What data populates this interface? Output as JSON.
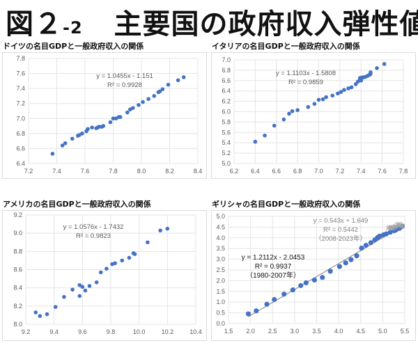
{
  "page": {
    "title_main": "図２",
    "title_sub": "-2",
    "title_rest": "主要国の政府収入弾性値"
  },
  "colors": {
    "marker": "#4472c4",
    "grid": "#e4e4e4",
    "text": "#595959",
    "cross": "#a6a6a6",
    "trend": "#7f7f7f"
  },
  "chart_data": [
    {
      "type": "scatter",
      "title": "ドイツの名目GDPと一般政府収入の関係",
      "xlim": [
        7.2,
        8.4
      ],
      "xticks": [
        "7.2",
        "7.4",
        "7.6",
        "7.8",
        "8.0",
        "8.2",
        "8.4"
      ],
      "ylim": [
        6.4,
        7.8
      ],
      "yticks": [
        "6.4",
        "6.6",
        "6.8",
        "7.0",
        "7.2",
        "7.4",
        "7.6",
        "7.8"
      ],
      "grid": true,
      "annotations": [
        "y = 1.0455x - 1.151",
        "R² = 0.9928"
      ],
      "series": [
        {
          "name": "ドイツ",
          "points": [
            [
              7.37,
              6.53
            ],
            [
              7.44,
              6.64
            ],
            [
              7.46,
              6.67
            ],
            [
              7.51,
              6.73
            ],
            [
              7.55,
              6.77
            ],
            [
              7.56,
              6.78
            ],
            [
              7.58,
              6.8
            ],
            [
              7.61,
              6.83
            ],
            [
              7.62,
              6.86
            ],
            [
              7.65,
              6.88
            ],
            [
              7.68,
              6.87
            ],
            [
              7.69,
              6.88
            ],
            [
              7.7,
              6.89
            ],
            [
              7.72,
              6.89
            ],
            [
              7.73,
              6.9
            ],
            [
              7.78,
              6.95
            ],
            [
              7.8,
              7.0
            ],
            [
              7.82,
              7.0
            ],
            [
              7.84,
              7.02
            ],
            [
              7.85,
              7.02
            ],
            [
              7.9,
              7.08
            ],
            [
              7.92,
              7.12
            ],
            [
              7.94,
              7.14
            ],
            [
              7.98,
              7.18
            ],
            [
              8.01,
              7.22
            ],
            [
              8.05,
              7.26
            ],
            [
              8.09,
              7.3
            ],
            [
              8.12,
              7.35
            ],
            [
              8.13,
              7.36
            ],
            [
              8.15,
              7.39
            ],
            [
              8.19,
              7.45
            ],
            [
              8.26,
              7.51
            ],
            [
              8.3,
              7.55
            ]
          ]
        }
      ]
    },
    {
      "type": "scatter",
      "title": "イタリアの名目GDPと一般政府収入の関係",
      "xlim": [
        6.2,
        7.8
      ],
      "xticks": [
        "6.2",
        "6.4",
        "6.6",
        "6.8",
        "7.0",
        "7.2",
        "7.4",
        "7.6",
        "7.8"
      ],
      "ylim": [
        5.0,
        7.0
      ],
      "yticks": [
        "5.0",
        "5.2",
        "5.4",
        "5.6",
        "5.8",
        "6.0",
        "6.2",
        "6.4",
        "6.6",
        "6.8",
        "7.0"
      ],
      "grid": true,
      "annotations": [
        "y = 1.1103x - 1.5808",
        "R² = 0.9859"
      ],
      "series": [
        {
          "name": "イタリア",
          "points": [
            [
              6.4,
              5.42
            ],
            [
              6.49,
              5.54
            ],
            [
              6.58,
              5.73
            ],
            [
              6.67,
              5.85
            ],
            [
              6.72,
              5.96
            ],
            [
              6.75,
              6.01
            ],
            [
              6.8,
              6.03
            ],
            [
              6.9,
              6.09
            ],
            [
              6.96,
              6.15
            ],
            [
              7.0,
              6.23
            ],
            [
              7.04,
              6.24
            ],
            [
              7.07,
              6.28
            ],
            [
              7.13,
              6.31
            ],
            [
              7.18,
              6.35
            ],
            [
              7.21,
              6.38
            ],
            [
              7.24,
              6.42
            ],
            [
              7.28,
              6.45
            ],
            [
              7.31,
              6.47
            ],
            [
              7.35,
              6.53
            ],
            [
              7.37,
              6.58
            ],
            [
              7.39,
              6.61
            ],
            [
              7.39,
              6.65
            ],
            [
              7.4,
              6.63
            ],
            [
              7.41,
              6.66
            ],
            [
              7.42,
              6.66
            ],
            [
              7.4,
              6.6
            ],
            [
              7.44,
              6.67
            ],
            [
              7.46,
              6.69
            ],
            [
              7.48,
              6.71
            ],
            [
              7.49,
              6.73
            ],
            [
              7.49,
              6.76
            ],
            [
              7.55,
              6.84
            ],
            [
              7.62,
              6.92
            ]
          ]
        }
      ]
    },
    {
      "type": "scatter",
      "title": "アメリカの名目GDPと一般政府収入の関係",
      "xlim": [
        9.2,
        10.4
      ],
      "xticks": [
        "9.2",
        "9.4",
        "9.6",
        "9.8",
        "10.0",
        "10.2",
        "10.4"
      ],
      "ylim": [
        8.0,
        9.2
      ],
      "yticks": [
        "8.0",
        "8.2",
        "8.4",
        "8.6",
        "8.8",
        "9.0",
        "9.2"
      ],
      "grid": true,
      "annotations": [
        "y = 1.0576x - 1.7432",
        "R² = 0.9823"
      ],
      "series": [
        {
          "name": "アメリカ",
          "points": [
            [
              9.27,
              8.13
            ],
            [
              9.3,
              8.09
            ],
            [
              9.35,
              8.11
            ],
            [
              9.41,
              8.19
            ],
            [
              9.47,
              8.3
            ],
            [
              9.53,
              8.38
            ],
            [
              9.58,
              8.43
            ],
            [
              9.58,
              8.31
            ],
            [
              9.6,
              8.41
            ],
            [
              9.62,
              8.37
            ],
            [
              9.65,
              8.42
            ],
            [
              9.7,
              8.46
            ],
            [
              9.73,
              8.57
            ],
            [
              9.77,
              8.61
            ],
            [
              9.81,
              8.66
            ],
            [
              9.83,
              8.67
            ],
            [
              9.88,
              8.7
            ],
            [
              9.93,
              8.73
            ],
            [
              9.96,
              8.78
            ],
            [
              9.97,
              8.77
            ],
            [
              10.06,
              8.9
            ],
            [
              10.15,
              9.03
            ],
            [
              10.2,
              9.05
            ]
          ]
        }
      ]
    },
    {
      "type": "scatter",
      "title": "ギリシャの名目GDPと一般政府収入の関係",
      "xlim": [
        1.5,
        5.5
      ],
      "xticks": [
        "1.5",
        "2.0",
        "2.5",
        "3.0",
        "3.5",
        "4.0",
        "4.5",
        "5.0",
        "5.5"
      ],
      "ylim": [
        0.0,
        5.0
      ],
      "yticks": [
        "0.0",
        "0.5",
        "1.0",
        "1.5",
        "2.0",
        "2.5",
        "3.0",
        "3.5",
        "4.0",
        "4.5",
        "5.0"
      ],
      "grid": true,
      "annotations_a": [
        "y = 1.2112x - 2.0453",
        "R² = 0.9937",
        "（1980-2007年）"
      ],
      "annotations_b": [
        "y = 0.543x + 1.649",
        "R² = 0.5442",
        "（2008-2023年）"
      ],
      "series": [
        {
          "name": "1980-2007年",
          "marker": "circle",
          "trend": {
            "slope": 1.2112,
            "intercept": -2.0453,
            "xrange": [
              1.95,
              5.44
            ]
          },
          "points": [
            [
              1.95,
              0.45
            ],
            [
              2.13,
              0.59
            ],
            [
              2.37,
              0.9
            ],
            [
              2.54,
              1.12
            ],
            [
              2.76,
              1.37
            ],
            [
              2.96,
              1.57
            ],
            [
              3.14,
              1.77
            ],
            [
              3.26,
              1.9
            ],
            [
              3.45,
              2.03
            ],
            [
              3.63,
              2.15
            ],
            [
              3.81,
              2.44
            ],
            [
              4.02,
              2.66
            ],
            [
              4.16,
              2.83
            ],
            [
              4.28,
              2.98
            ],
            [
              4.41,
              3.16
            ],
            [
              4.52,
              3.52
            ],
            [
              4.62,
              3.65
            ],
            [
              4.73,
              3.77
            ],
            [
              4.82,
              3.9
            ],
            [
              4.88,
              4.01
            ],
            [
              4.93,
              4.08
            ],
            [
              5.02,
              4.14
            ],
            [
              5.08,
              4.18
            ],
            [
              5.17,
              4.26
            ],
            [
              5.26,
              4.33
            ],
            [
              5.3,
              4.37
            ],
            [
              5.38,
              4.44
            ],
            [
              5.44,
              4.54
            ]
          ]
        },
        {
          "name": "2008-2023年",
          "marker": "cross",
          "trend": {
            "slope": 0.543,
            "intercept": 1.649,
            "xrange": [
              5.1,
              5.45
            ]
          },
          "points": [
            [
              5.12,
              4.45
            ],
            [
              5.15,
              4.48
            ],
            [
              5.18,
              4.47
            ],
            [
              5.19,
              4.43
            ],
            [
              5.2,
              4.5
            ],
            [
              5.22,
              4.46
            ],
            [
              5.23,
              4.48
            ],
            [
              5.25,
              4.5
            ],
            [
              5.28,
              4.52
            ],
            [
              5.3,
              4.55
            ],
            [
              5.33,
              4.6
            ],
            [
              5.35,
              4.62
            ],
            [
              5.38,
              4.65
            ],
            [
              5.4,
              4.6
            ],
            [
              5.42,
              4.55
            ],
            [
              5.45,
              4.55
            ]
          ]
        }
      ]
    }
  ]
}
